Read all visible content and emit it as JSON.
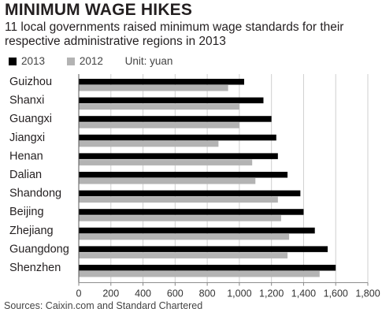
{
  "header": {
    "title": "MINIMUM WAGE HIKES",
    "subtitle": "11 local governments raised minimum wage standards for their respective administrative regions in 2013"
  },
  "legend": {
    "unit": "Unit: yuan"
  },
  "source": "Sources: Caixin.com and Standard Chartered",
  "chart_data": {
    "type": "bar",
    "orientation": "horizontal",
    "categories": [
      "Guizhou",
      "Shanxi",
      "Guangxi",
      "Jiangxi",
      "Henan",
      "Dalian",
      "Shandong",
      "Beijing",
      "Zhejiang",
      "Guangdong",
      "Shenzhen"
    ],
    "series": [
      {
        "name": "2013",
        "color": "#000000",
        "values": [
          1030,
          1150,
          1200,
          1230,
          1240,
          1300,
          1380,
          1400,
          1470,
          1550,
          1600
        ]
      },
      {
        "name": "2012",
        "color": "#b3b3b3",
        "values": [
          930,
          1000,
          1000,
          870,
          1080,
          1100,
          1240,
          1260,
          1310,
          1300,
          1500
        ]
      }
    ],
    "xlim": [
      0,
      1800
    ],
    "xticks": [
      0,
      200,
      400,
      600,
      800,
      "1,000",
      "1,200",
      "1,400",
      "1,600",
      "1,800"
    ],
    "legend_position": "top-left",
    "grid": true
  }
}
